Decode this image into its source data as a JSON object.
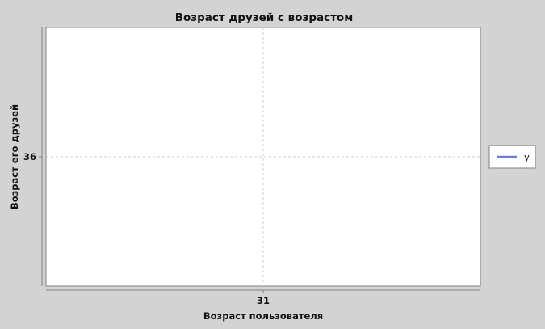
{
  "chart_data": {
    "type": "line",
    "title": "Возраст друзей с возрастом",
    "xlabel": "Возраст пользователя",
    "ylabel": "Возраст его друзей",
    "x_ticks": [
      31
    ],
    "y_ticks": [
      36
    ],
    "xlim": [
      30,
      32
    ],
    "ylim": [
      35,
      37
    ],
    "grid": true,
    "legend_position": "right",
    "series": [
      {
        "name": "y",
        "color": "#6a7fdb",
        "points": [
          {
            "x": 31,
            "y": 36
          }
        ]
      }
    ]
  },
  "colors": {
    "background": "#d3d3d3",
    "plot_background": "#ffffff",
    "grid": "#cfcfcf",
    "axis": "#808080"
  }
}
